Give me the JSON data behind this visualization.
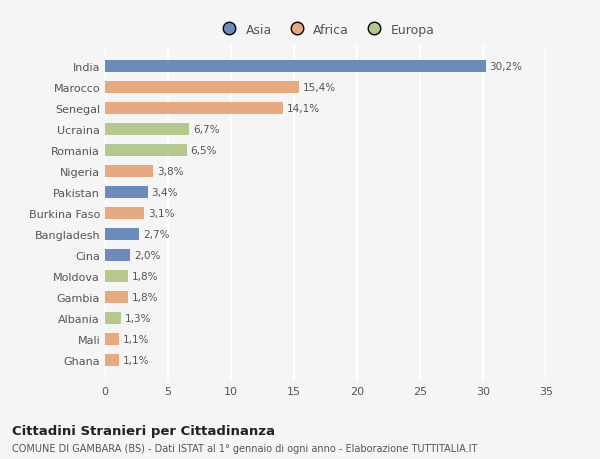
{
  "categories": [
    "India",
    "Marocco",
    "Senegal",
    "Ucraina",
    "Romania",
    "Nigeria",
    "Pakistan",
    "Burkina Faso",
    "Bangladesh",
    "Cina",
    "Moldova",
    "Gambia",
    "Albania",
    "Mali",
    "Ghana"
  ],
  "values": [
    30.2,
    15.4,
    14.1,
    6.7,
    6.5,
    3.8,
    3.4,
    3.1,
    2.7,
    2.0,
    1.8,
    1.8,
    1.3,
    1.1,
    1.1
  ],
  "labels": [
    "30,2%",
    "15,4%",
    "14,1%",
    "6,7%",
    "6,5%",
    "3,8%",
    "3,4%",
    "3,1%",
    "2,7%",
    "2,0%",
    "1,8%",
    "1,8%",
    "1,3%",
    "1,1%",
    "1,1%"
  ],
  "colors": [
    "#6b8cba",
    "#e8a97e",
    "#e8a97e",
    "#b5c98e",
    "#b5c98e",
    "#e8a97e",
    "#6b8cba",
    "#e8a97e",
    "#6b8cba",
    "#6b8cba",
    "#b5c98e",
    "#e8a97e",
    "#b5c98e",
    "#e8a97e",
    "#e8a97e"
  ],
  "legend_labels": [
    "Asia",
    "Africa",
    "Europa"
  ],
  "legend_colors": [
    "#6b8cba",
    "#e8a97e",
    "#b5c98e"
  ],
  "xlim": [
    0,
    35
  ],
  "xticks": [
    0,
    5,
    10,
    15,
    20,
    25,
    30,
    35
  ],
  "title": "Cittadini Stranieri per Cittadinanza",
  "subtitle": "COMUNE DI GAMBARA (BS) - Dati ISTAT al 1° gennaio di ogni anno - Elaborazione TUTTITALIA.IT",
  "bg_color": "#f5f5f5",
  "grid_color": "#ffffff",
  "bar_height": 0.55,
  "label_fontsize": 7.5,
  "ytick_fontsize": 8.0,
  "xtick_fontsize": 8.0
}
